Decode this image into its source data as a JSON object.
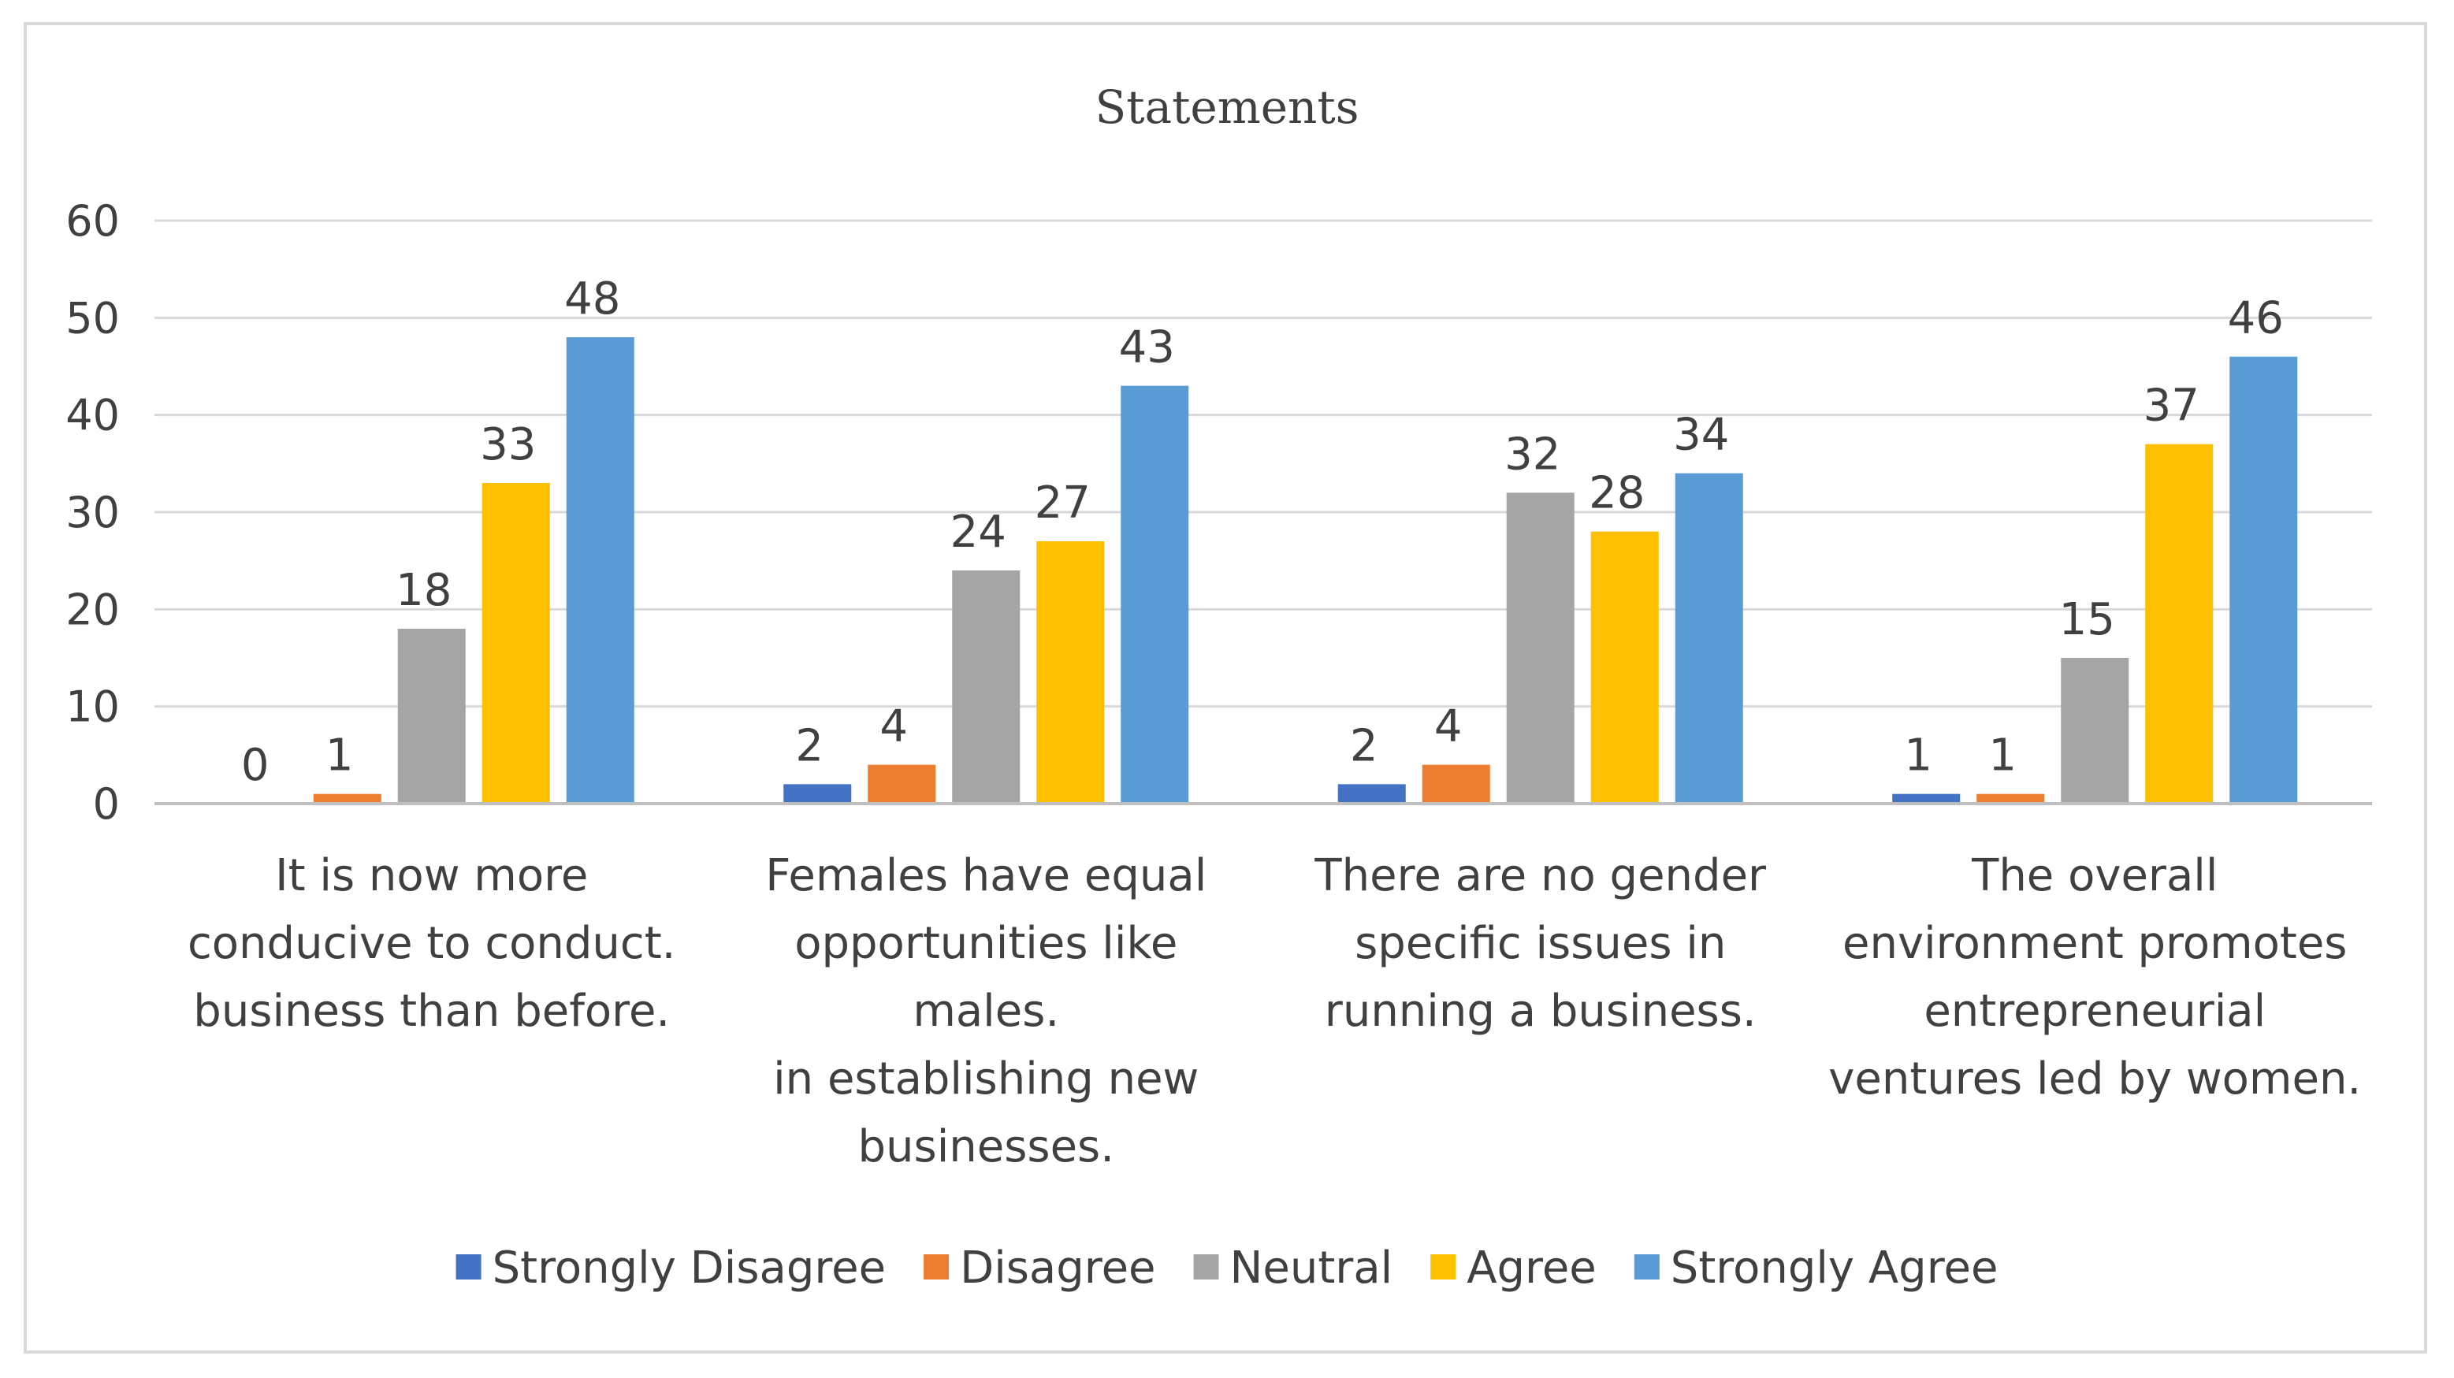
{
  "chart_data": {
    "type": "bar",
    "title": "Statements",
    "xlabel": "",
    "ylabel": "",
    "ylim": [
      0,
      60
    ],
    "yticks": [
      0,
      10,
      20,
      30,
      40,
      50,
      60
    ],
    "yticklabels": [
      "0",
      "10",
      "20",
      "30",
      "40",
      "50",
      "60"
    ],
    "categories": [
      [
        "It is now more",
        "conducive to conduct.",
        "business than before."
      ],
      [
        "Females have equal",
        "opportunities like",
        "males.",
        "in establishing new",
        "businesses."
      ],
      [
        "There are no gender",
        "specific issues in",
        "running a business."
      ],
      [
        "The overall",
        "environment promotes",
        "entrepreneurial",
        "ventures led by women."
      ]
    ],
    "series": [
      {
        "name": "Strongly Disagree",
        "color": "#4472c4",
        "values": [
          0,
          2,
          2,
          1
        ],
        "labels": [
          "0",
          "2",
          "2",
          "1"
        ]
      },
      {
        "name": "Disagree",
        "color": "#ed7d31",
        "values": [
          1,
          4,
          4,
          1
        ],
        "labels": [
          "1",
          "4",
          "4",
          "1"
        ]
      },
      {
        "name": "Neutral",
        "color": "#a5a5a5",
        "values": [
          18,
          24,
          32,
          15
        ],
        "labels": [
          "18",
          "24",
          "32",
          "15"
        ]
      },
      {
        "name": "Agree",
        "color": "#ffc000",
        "values": [
          33,
          27,
          28,
          37
        ],
        "labels": [
          "33",
          "27",
          "28",
          "37"
        ]
      },
      {
        "name": "Strongly Agree",
        "color": "#5b9bd5",
        "values": [
          48,
          43,
          34,
          46
        ],
        "labels": [
          "48",
          "43",
          "34",
          "46"
        ]
      }
    ],
    "grid": true,
    "legend": "bottom"
  }
}
